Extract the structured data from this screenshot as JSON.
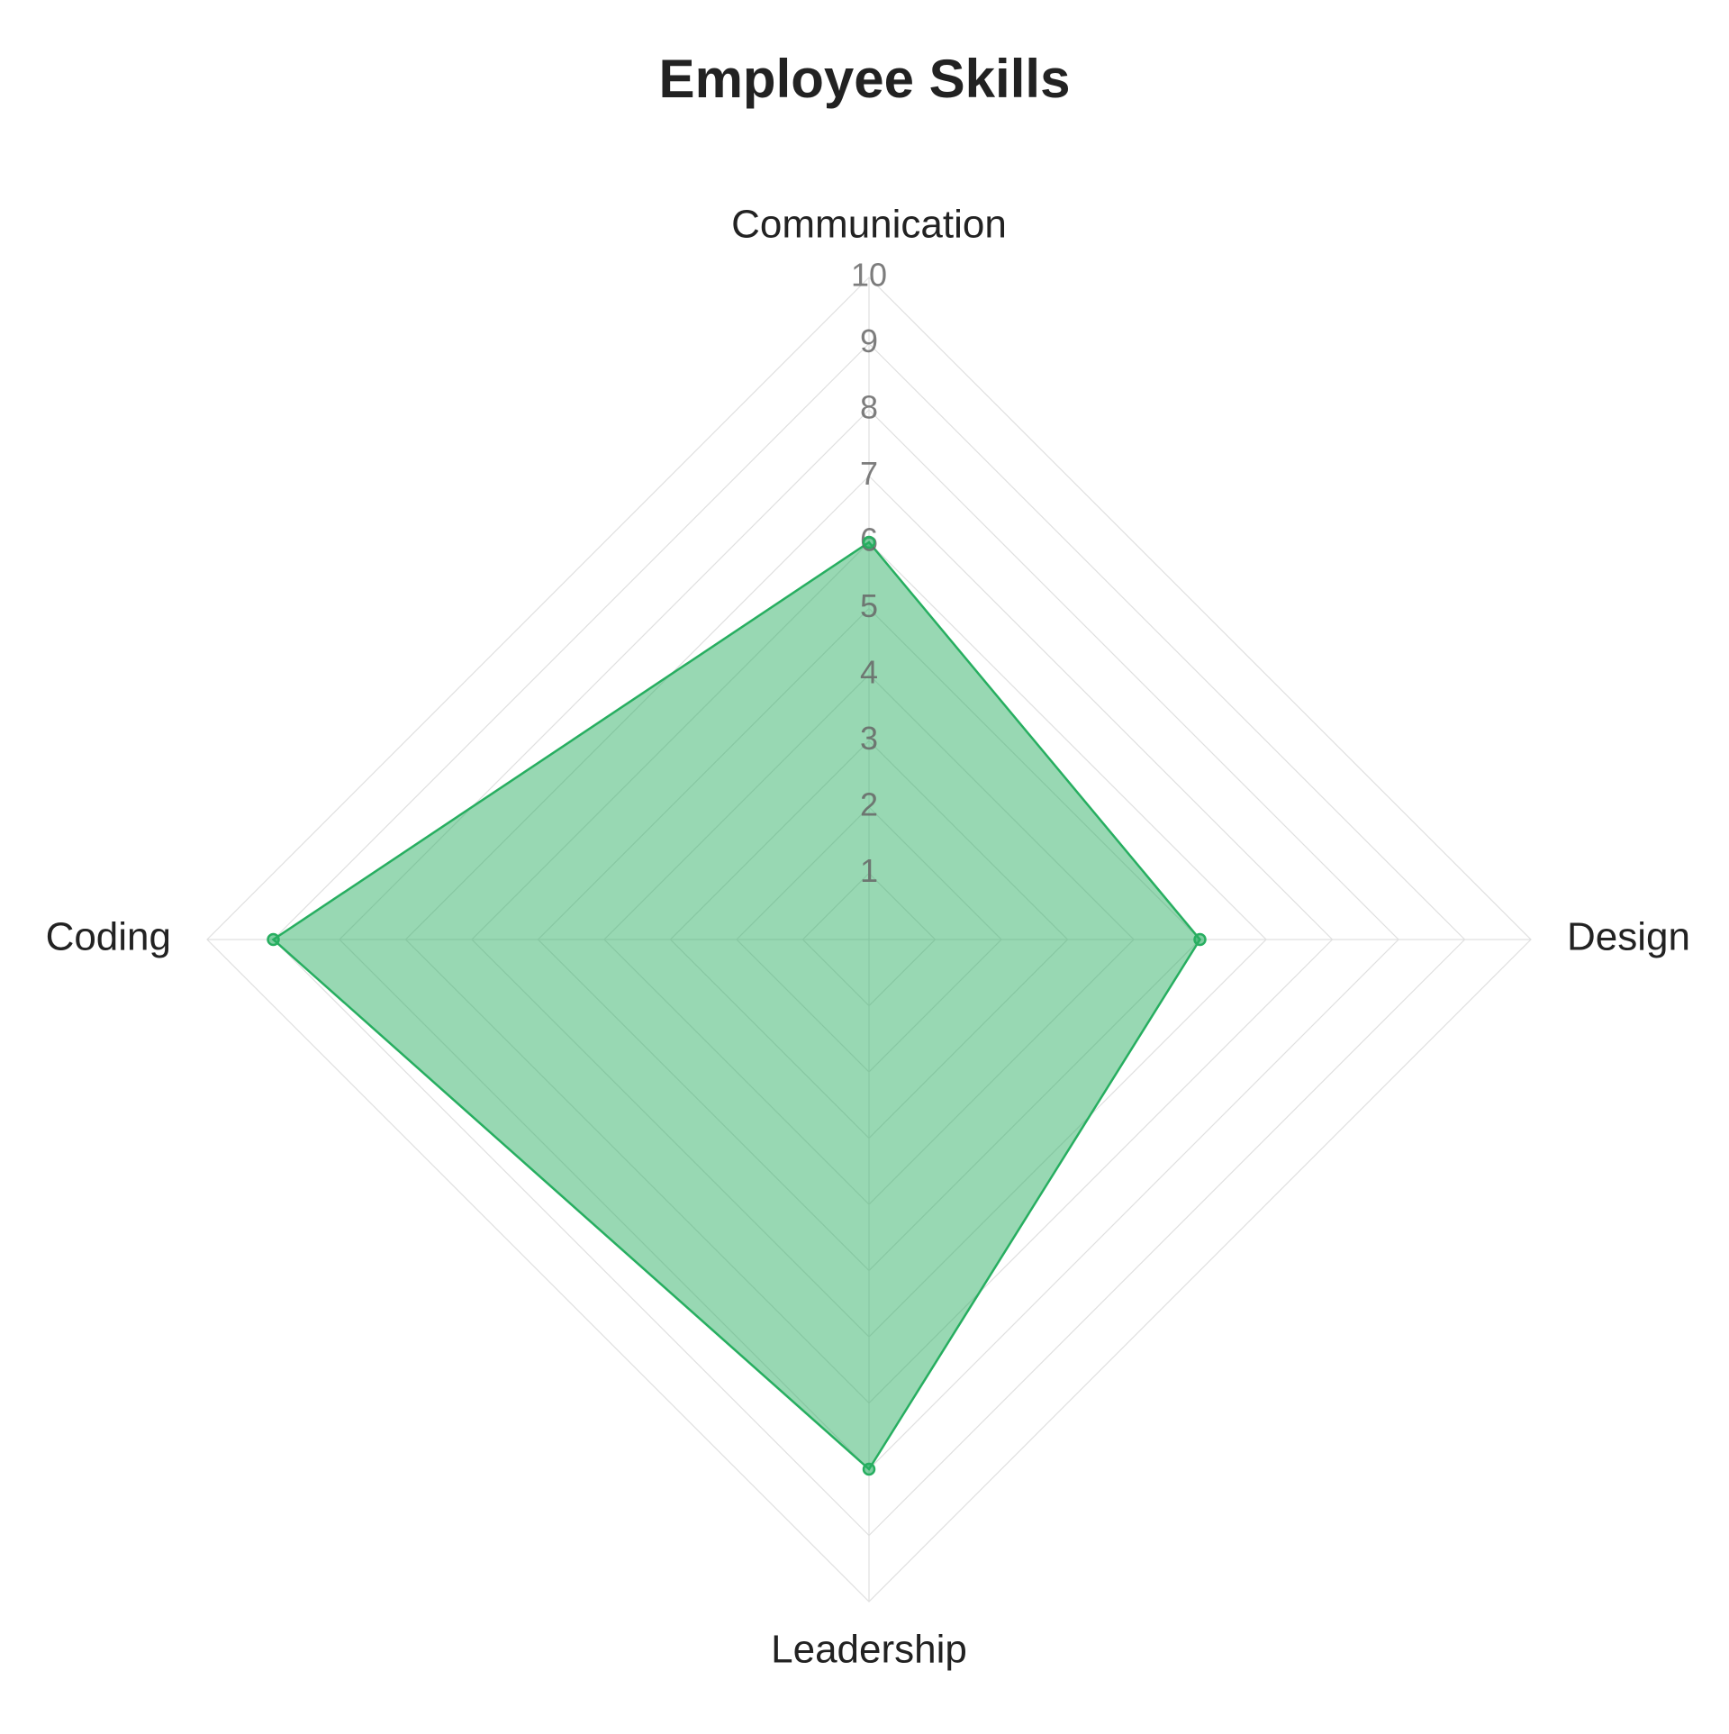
{
  "chart_data": {
    "type": "radar",
    "title": "Employee Skills",
    "categories": [
      "Communication",
      "Design",
      "Leadership",
      "Coding"
    ],
    "values": [
      6,
      5,
      8,
      9
    ],
    "color": "#27ae60",
    "ylim": [
      0,
      10
    ],
    "yticks": [
      1,
      2,
      3,
      4,
      5,
      6,
      7,
      8,
      9,
      10
    ],
    "grid": true
  }
}
